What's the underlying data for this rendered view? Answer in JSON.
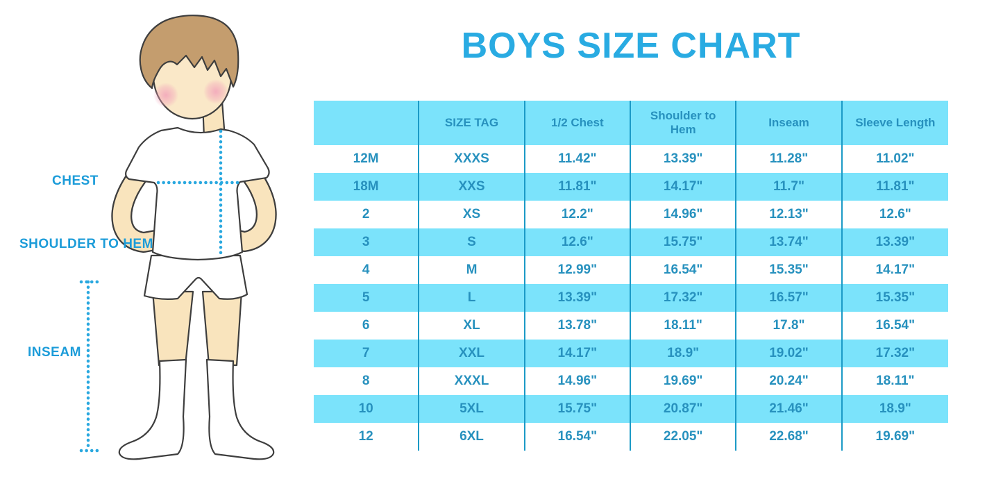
{
  "title": "BOYS SIZE CHART",
  "figure": {
    "labels": {
      "chest": "CHEST",
      "shoulder_to_hem": "SHOULDER TO HEM",
      "inseam": "INSEAM"
    }
  },
  "chart_data": {
    "type": "table",
    "title": "BOYS SIZE CHART",
    "columns": [
      "",
      "SIZE TAG",
      "1/2 Chest",
      "Shoulder to Hem",
      "Inseam",
      "Sleeve Length"
    ],
    "rows": [
      [
        "12M",
        "XXXS",
        "11.42\"",
        "13.39\"",
        "11.28\"",
        "11.02\""
      ],
      [
        "18M",
        "XXS",
        "11.81\"",
        "14.17\"",
        "11.7\"",
        "11.81\""
      ],
      [
        "2",
        "XS",
        "12.2\"",
        "14.96\"",
        "12.13\"",
        "12.6\""
      ],
      [
        "3",
        "S",
        "12.6\"",
        "15.75\"",
        "13.74\"",
        "13.39\""
      ],
      [
        "4",
        "M",
        "12.99\"",
        "16.54\"",
        "15.35\"",
        "14.17\""
      ],
      [
        "5",
        "L",
        "13.39\"",
        "17.32\"",
        "16.57\"",
        "15.35\""
      ],
      [
        "6",
        "XL",
        "13.78\"",
        "18.11\"",
        "17.8\"",
        "16.54\""
      ],
      [
        "7",
        "XXL",
        "14.17\"",
        "18.9\"",
        "19.02\"",
        "17.32\""
      ],
      [
        "8",
        "XXXL",
        "14.96\"",
        "19.69\"",
        "20.24\"",
        "18.11\""
      ],
      [
        "10",
        "5XL",
        "15.75\"",
        "20.87\"",
        "21.46\"",
        "18.9\""
      ],
      [
        "12",
        "6XL",
        "16.54\"",
        "22.05\"",
        "22.68\"",
        "19.69\""
      ]
    ],
    "units": "inches",
    "row_striping": "white and cyan alternating, header cyan",
    "grid": "vertical column dividers only"
  },
  "colors": {
    "title_blue": "#29ABE2",
    "table_cyan": "#7BE3FB",
    "table_divider": "#1B9AC6",
    "table_text": "#2791BE",
    "figure_label_blue": "#1C9CD9",
    "dotted_line_blue": "#29A8DF",
    "skin": "#F9E4BD",
    "hair_brown": "#C49D6E",
    "blush_pink": "#F2A3BA"
  }
}
